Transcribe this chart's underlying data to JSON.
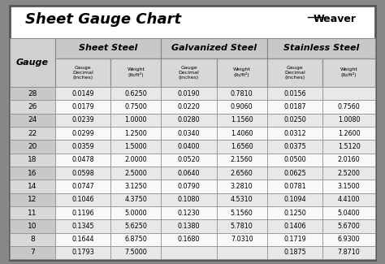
{
  "title": "Sheet Gauge Chart",
  "background_outer": "#888888",
  "background_inner": "#ffffff",
  "header_bg": "#d0d0d0",
  "row_bg_odd": "#e8e8e8",
  "row_bg_even": "#f8f8f8",
  "col_header_bg": "#d8d8d8",
  "gauges": [
    28,
    26,
    24,
    22,
    20,
    18,
    16,
    14,
    12,
    11,
    10,
    8,
    7
  ],
  "sheet_steel": [
    [
      "0.0149",
      "0.6250"
    ],
    [
      "0.0179",
      "0.7500"
    ],
    [
      "0.0239",
      "1.0000"
    ],
    [
      "0.0299",
      "1.2500"
    ],
    [
      "0.0359",
      "1.5000"
    ],
    [
      "0.0478",
      "2.0000"
    ],
    [
      "0.0598",
      "2.5000"
    ],
    [
      "0.0747",
      "3.1250"
    ],
    [
      "0.1046",
      "4.3750"
    ],
    [
      "0.1196",
      "5.0000"
    ],
    [
      "0.1345",
      "5.6250"
    ],
    [
      "0.1644",
      "6.8750"
    ],
    [
      "0.1793",
      "7.5000"
    ]
  ],
  "galvanized_steel": [
    [
      "0.0190",
      "0.7810"
    ],
    [
      "0.0220",
      "0.9060"
    ],
    [
      "0.0280",
      "1.1560"
    ],
    [
      "0.0340",
      "1.4060"
    ],
    [
      "0.0400",
      "1.6560"
    ],
    [
      "0.0520",
      "2.1560"
    ],
    [
      "0.0640",
      "2.6560"
    ],
    [
      "0.0790",
      "3.2810"
    ],
    [
      "0.1080",
      "4.5310"
    ],
    [
      "0.1230",
      "5.1560"
    ],
    [
      "0.1380",
      "5.7810"
    ],
    [
      "0.1680",
      "7.0310"
    ],
    [
      "",
      ""
    ]
  ],
  "stainless_steel": [
    [
      "0.0156",
      ""
    ],
    [
      "0.0187",
      "0.7560"
    ],
    [
      "0.0250",
      "1.0080"
    ],
    [
      "0.0312",
      "1.2600"
    ],
    [
      "0.0375",
      "1.5120"
    ],
    [
      "0.0500",
      "2.0160"
    ],
    [
      "0.0625",
      "2.5200"
    ],
    [
      "0.0781",
      "3.1500"
    ],
    [
      "0.1094",
      "4.4100"
    ],
    [
      "0.1250",
      "5.0400"
    ],
    [
      "0.1406",
      "5.6700"
    ],
    [
      "0.1719",
      "6.9300"
    ],
    [
      "0.1875",
      "7.8710"
    ]
  ]
}
